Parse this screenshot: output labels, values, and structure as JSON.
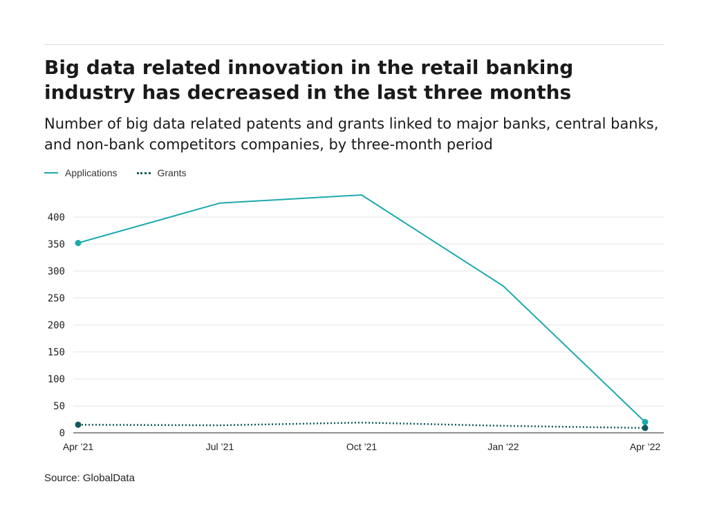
{
  "header": {
    "title": "Big data related innovation in the retail banking industry has decreased in the last three months",
    "subtitle": "Number of big data related patents and grants linked to major banks, central banks, and non-bank competitors companies, by three-month period"
  },
  "legend": {
    "items": [
      {
        "label": "Applications",
        "style": "solid",
        "color": "#1ba9ad"
      },
      {
        "label": "Grants",
        "style": "dotted",
        "color": "#0f5a5c"
      }
    ]
  },
  "source": "Source: GlobalData",
  "chart_data": {
    "type": "line",
    "x": [
      "Apr ’21",
      "Jul ’21",
      "Oct ’21",
      "Jan ’22",
      "Apr ’22"
    ],
    "series": [
      {
        "name": "Applications",
        "values": [
          352,
          426,
          441,
          272,
          20
        ],
        "color": "#1ba9ad",
        "style": "solid"
      },
      {
        "name": "Grants",
        "values": [
          15,
          14,
          19,
          13,
          9
        ],
        "color": "#0f5a5c",
        "style": "dotted"
      }
    ],
    "y_ticks": [
      0,
      50,
      100,
      150,
      200,
      250,
      300,
      350,
      400
    ],
    "ylim": [
      0,
      450
    ],
    "grid": true,
    "legend_position": "top-left",
    "title": "Big data related innovation in the retail banking industry has decreased in the last three months",
    "subtitle": "Number of big data related patents and grants linked to major banks, central banks, and non-bank competitors companies, by three-month period",
    "xlabel": "",
    "ylabel": ""
  }
}
